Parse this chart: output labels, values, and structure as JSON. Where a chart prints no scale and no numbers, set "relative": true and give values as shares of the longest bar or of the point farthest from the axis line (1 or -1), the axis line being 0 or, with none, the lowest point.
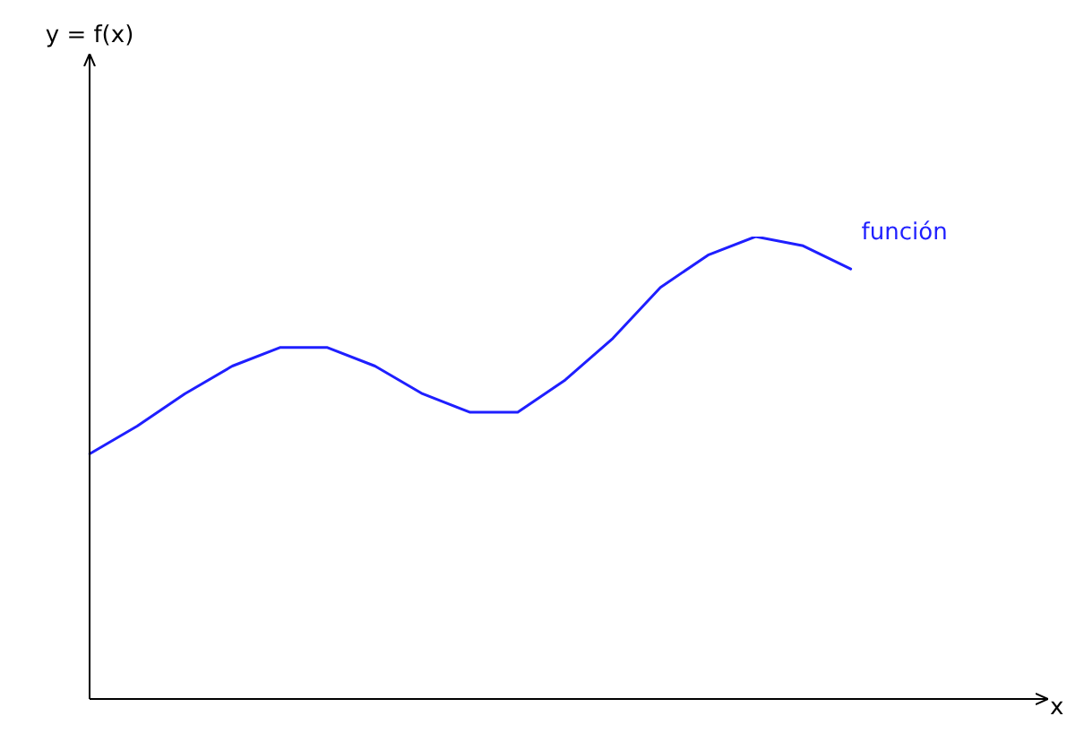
{
  "chart_data": {
    "type": "line",
    "xlabel": "x",
    "annotations": [
      "y = f(x)"
    ],
    "relative": true,
    "categories": [
      null,
      null,
      null,
      null,
      null,
      null,
      null,
      null,
      null,
      null,
      null,
      null,
      null,
      null,
      null,
      null,
      null,
      null,
      null,
      null,
      null
    ],
    "series": [
      {
        "name": "función",
        "color": "#1f1fff",
        "values": [
          0.53,
          0.59,
          0.66,
          0.72,
          0.76,
          0.76,
          0.72,
          0.66,
          0.62,
          0.62,
          0.69,
          0.78,
          0.89,
          0.96,
          1.0,
          0.98,
          0.93,
          null,
          null,
          null,
          null
        ]
      }
    ],
    "grid": false,
    "legend": false,
    "marker": "none",
    "line_style": "solid"
  }
}
